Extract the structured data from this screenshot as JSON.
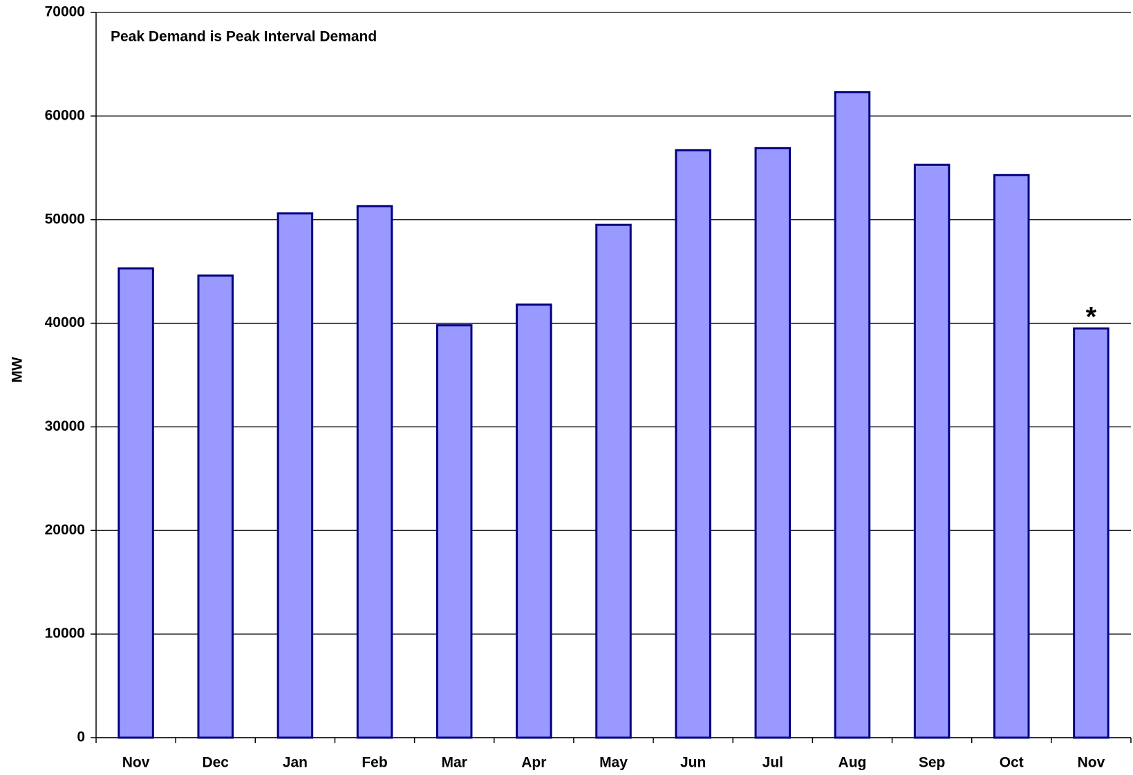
{
  "chart_data": {
    "type": "bar",
    "annotation": "Peak Demand is Peak Interval Demand",
    "bar_annotation": "*",
    "ylabel": "MW",
    "categories": [
      "Nov",
      "Dec",
      "Jan",
      "Feb",
      "Mar",
      "Apr",
      "May",
      "Jun",
      "Jul",
      "Aug",
      "Sep",
      "Oct",
      "Nov"
    ],
    "values": [
      45300,
      44600,
      50600,
      51300,
      39800,
      41800,
      49500,
      56700,
      56900,
      62300,
      55300,
      54300,
      39500
    ],
    "color": "#9999ff",
    "edge_color": "#000080",
    "ylim": [
      0,
      70000
    ],
    "yticks": [
      0,
      10000,
      20000,
      30000,
      40000,
      50000,
      60000,
      70000
    ],
    "grid": true
  }
}
